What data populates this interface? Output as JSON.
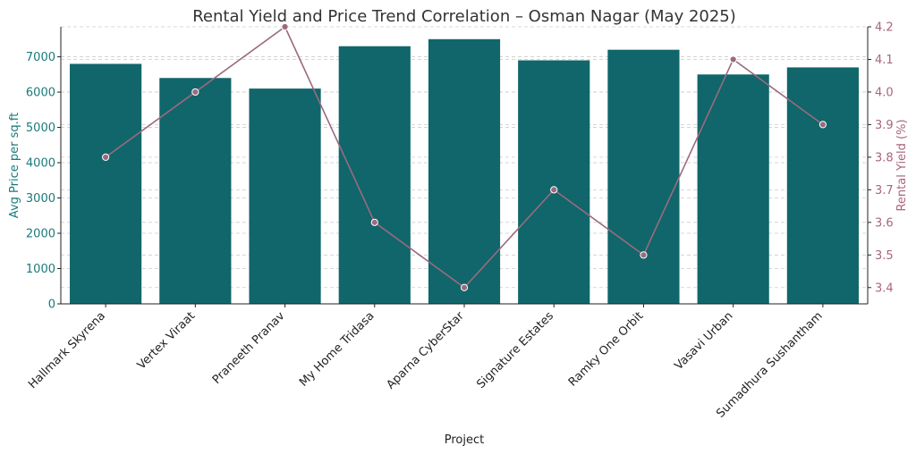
{
  "chart_data": {
    "type": "bar+line",
    "title": "Rental Yield and Price Trend Correlation – Osman Nagar (May 2025)",
    "xlabel": "Project",
    "ylabel_left": "Avg Price per sq.ft",
    "ylabel_right": "Rental Yield (%)",
    "categories": [
      "Hallmark Skyrena",
      "Vertex Viraat",
      "Praneeth Pranav",
      "My Home Tridasa",
      "Aparna CyberStar",
      "Signature Estates",
      "Ramky One Orbit",
      "Vasavi Urban",
      "Sumadhura Sushantham"
    ],
    "series": [
      {
        "name": "Avg Price per sq.ft",
        "type": "bar",
        "axis": "left",
        "color": "#10666a",
        "values": [
          6800,
          6400,
          6100,
          7300,
          7500,
          6900,
          7200,
          6500,
          6700
        ]
      },
      {
        "name": "Rental Yield (%)",
        "type": "line",
        "axis": "right",
        "color": "#9b6a7e",
        "values": [
          3.8,
          4.0,
          4.2,
          3.6,
          3.4,
          3.7,
          3.5,
          4.1,
          3.9
        ]
      }
    ],
    "ylim_left": [
      0,
      7850
    ],
    "yticks_left": [
      0,
      1000,
      2000,
      3000,
      4000,
      5000,
      6000,
      7000
    ],
    "ylim_right": [
      3.35,
      4.2
    ],
    "yticks_right": [
      3.4,
      3.5,
      3.6,
      3.7,
      3.8,
      3.9,
      4.0,
      4.1,
      4.2
    ],
    "yticks_right_labels": [
      "3.4",
      "3.5",
      "3.6",
      "3.7",
      "3.8",
      "3.9",
      "4.0",
      "4.1",
      "4.2"
    ],
    "grid": true,
    "left_color": "#1b7a7a",
    "right_color": "#a8667c"
  }
}
